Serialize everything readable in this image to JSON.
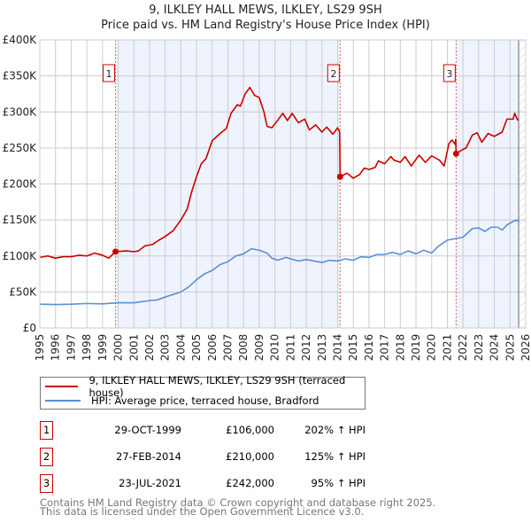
{
  "chart_data": {
    "type": "line",
    "title": "9, ILKLEY HALL MEWS, ILKLEY, LS29 9SH",
    "subtitle": "Price paid vs. HM Land Registry's House Price Index (HPI)",
    "xlim": [
      1995,
      2026
    ],
    "ylim": [
      0,
      400000
    ],
    "x_ticks": [
      "1995",
      "1996",
      "1997",
      "1998",
      "1999",
      "2000",
      "2001",
      "2002",
      "2003",
      "2004",
      "2005",
      "2006",
      "2007",
      "2008",
      "2009",
      "2010",
      "2011",
      "2012",
      "2013",
      "2014",
      "2015",
      "2016",
      "2017",
      "2018",
      "2019",
      "2020",
      "2021",
      "2022",
      "2023",
      "2024",
      "2025",
      "2026"
    ],
    "y_ticks": [
      {
        "v": 0,
        "label": "£0"
      },
      {
        "v": 50000,
        "label": "£50K"
      },
      {
        "v": 100000,
        "label": "£100K"
      },
      {
        "v": 150000,
        "label": "£150K"
      },
      {
        "v": 200000,
        "label": "£200K"
      },
      {
        "v": 250000,
        "label": "£250K"
      },
      {
        "v": 300000,
        "label": "£300K"
      },
      {
        "v": 350000,
        "label": "£350K"
      },
      {
        "v": 400000,
        "label": "£400K"
      }
    ],
    "grid": true,
    "series": [
      {
        "name": "9, ILKLEY HALL MEWS, ILKLEY, LS29 9SH (terraced house)",
        "color": "#cc0000",
        "points": [
          [
            1995,
            98
          ],
          [
            1995.5,
            100
          ],
          [
            1996,
            97
          ],
          [
            1996.5,
            99
          ],
          [
            1997,
            99
          ],
          [
            1997.5,
            101
          ],
          [
            1998,
            100
          ],
          [
            1998.5,
            104
          ],
          [
            1999,
            101
          ],
          [
            1999.4,
            97
          ],
          [
            1999.83,
            106
          ],
          [
            2000.5,
            107
          ],
          [
            2001,
            106
          ],
          [
            2001.3,
            107
          ],
          [
            2001.7,
            114
          ],
          [
            2002.2,
            116
          ],
          [
            2002.6,
            122
          ],
          [
            2003,
            127
          ],
          [
            2003.5,
            135
          ],
          [
            2004,
            150
          ],
          [
            2004.4,
            165
          ],
          [
            2004.7,
            190
          ],
          [
            2005,
            210
          ],
          [
            2005.3,
            228
          ],
          [
            2005.6,
            235
          ],
          [
            2006,
            260
          ],
          [
            2006.5,
            270
          ],
          [
            2006.9,
            277
          ],
          [
            2007.2,
            298
          ],
          [
            2007.6,
            310
          ],
          [
            2007.8,
            308
          ],
          [
            2008.1,
            325
          ],
          [
            2008.4,
            334
          ],
          [
            2008.7,
            323
          ],
          [
            2009,
            320
          ],
          [
            2009.3,
            300
          ],
          [
            2009.5,
            280
          ],
          [
            2009.8,
            278
          ],
          [
            2010.2,
            289
          ],
          [
            2010.5,
            298
          ],
          [
            2010.8,
            288
          ],
          [
            2011.1,
            298
          ],
          [
            2011.5,
            285
          ],
          [
            2011.9,
            290
          ],
          [
            2012.2,
            275
          ],
          [
            2012.6,
            282
          ],
          [
            2013,
            272
          ],
          [
            2013.3,
            279
          ],
          [
            2013.7,
            269
          ],
          [
            2014.0,
            278
          ],
          [
            2014.13,
            272
          ],
          [
            2014.16,
            210
          ],
          [
            2014.6,
            215
          ],
          [
            2015,
            208
          ],
          [
            2015.4,
            213
          ],
          [
            2015.7,
            222
          ],
          [
            2016,
            220
          ],
          [
            2016.4,
            223
          ],
          [
            2016.6,
            232
          ],
          [
            2017,
            228
          ],
          [
            2017.4,
            238
          ],
          [
            2017.6,
            233
          ],
          [
            2018,
            230
          ],
          [
            2018.3,
            238
          ],
          [
            2018.7,
            225
          ],
          [
            2019.2,
            240
          ],
          [
            2019.6,
            230
          ],
          [
            2020,
            239
          ],
          [
            2020.5,
            233
          ],
          [
            2020.8,
            225
          ],
          [
            2021.1,
            256
          ],
          [
            2021.3,
            261
          ],
          [
            2021.5,
            255
          ],
          [
            2021.54,
            262
          ],
          [
            2021.56,
            242
          ],
          [
            2022,
            248
          ],
          [
            2022.2,
            250
          ],
          [
            2022.6,
            268
          ],
          [
            2022.9,
            271
          ],
          [
            2023.2,
            258
          ],
          [
            2023.6,
            270
          ],
          [
            2024,
            266
          ],
          [
            2024.5,
            272
          ],
          [
            2024.8,
            290
          ],
          [
            2025.2,
            290
          ],
          [
            2025.3,
            298
          ],
          [
            2025.5,
            288
          ]
        ]
      },
      {
        "name": "HPI: Average price, terraced house, Bradford",
        "color": "#5b8fd6",
        "points": [
          [
            1995,
            33
          ],
          [
            1996,
            32.5
          ],
          [
            1997,
            33
          ],
          [
            1998,
            34
          ],
          [
            1999,
            33.5
          ],
          [
            2000,
            35
          ],
          [
            2001,
            35
          ],
          [
            2002,
            38
          ],
          [
            2002.5,
            39
          ],
          [
            2003,
            43
          ],
          [
            2004,
            50
          ],
          [
            2004.5,
            57
          ],
          [
            2005,
            67
          ],
          [
            2005.5,
            75
          ],
          [
            2006,
            80
          ],
          [
            2006.5,
            88
          ],
          [
            2007,
            92
          ],
          [
            2007.5,
            100
          ],
          [
            2008,
            103
          ],
          [
            2008.5,
            110
          ],
          [
            2009,
            108
          ],
          [
            2009.5,
            104
          ],
          [
            2009.8,
            97
          ],
          [
            2010.2,
            94
          ],
          [
            2010.7,
            98
          ],
          [
            2011,
            96
          ],
          [
            2011.5,
            93
          ],
          [
            2012,
            95
          ],
          [
            2012.5,
            93
          ],
          [
            2013,
            91
          ],
          [
            2013.5,
            94
          ],
          [
            2014,
            93
          ],
          [
            2014.5,
            96
          ],
          [
            2015,
            94
          ],
          [
            2015.5,
            99
          ],
          [
            2016,
            98
          ],
          [
            2016.5,
            102
          ],
          [
            2017,
            102
          ],
          [
            2017.5,
            105
          ],
          [
            2018,
            102
          ],
          [
            2018.5,
            107
          ],
          [
            2019,
            103
          ],
          [
            2019.5,
            108
          ],
          [
            2020,
            104
          ],
          [
            2020.4,
            113
          ],
          [
            2021,
            122
          ],
          [
            2021.5,
            124
          ],
          [
            2022,
            126
          ],
          [
            2022.6,
            138
          ],
          [
            2023,
            139
          ],
          [
            2023.4,
            134
          ],
          [
            2023.8,
            140
          ],
          [
            2024.2,
            140
          ],
          [
            2024.5,
            136
          ],
          [
            2024.8,
            143
          ],
          [
            2025.2,
            148
          ],
          [
            2025.4,
            150
          ],
          [
            2025.6,
            147
          ]
        ]
      }
    ],
    "y_unit": 1000,
    "shaded_ranges": [
      [
        1999.83,
        2014.16
      ],
      [
        2021.56,
        2025.55
      ]
    ],
    "forecast_hatch_from": 2025.55,
    "sales": [
      {
        "n": "1",
        "x": 1999.83,
        "value": 106
      },
      {
        "n": "2",
        "x": 2014.16,
        "value": 210
      },
      {
        "n": "3",
        "x": 2021.56,
        "value": 242
      }
    ],
    "legend_position": "below"
  },
  "transactions": [
    {
      "n": "1",
      "date": "29-OCT-1999",
      "price": "£106,000",
      "hpi": "202% ↑ HPI"
    },
    {
      "n": "2",
      "date": "27-FEB-2014",
      "price": "£210,000",
      "hpi": "125% ↑ HPI"
    },
    {
      "n": "3",
      "date": "23-JUL-2021",
      "price": "£242,000",
      "hpi": "95% ↑ HPI"
    }
  ],
  "footer": {
    "line1": "Contains HM Land Registry data © Crown copyright and database right 2025.",
    "line2": "This data is licensed under the Open Government Licence v3.0."
  }
}
